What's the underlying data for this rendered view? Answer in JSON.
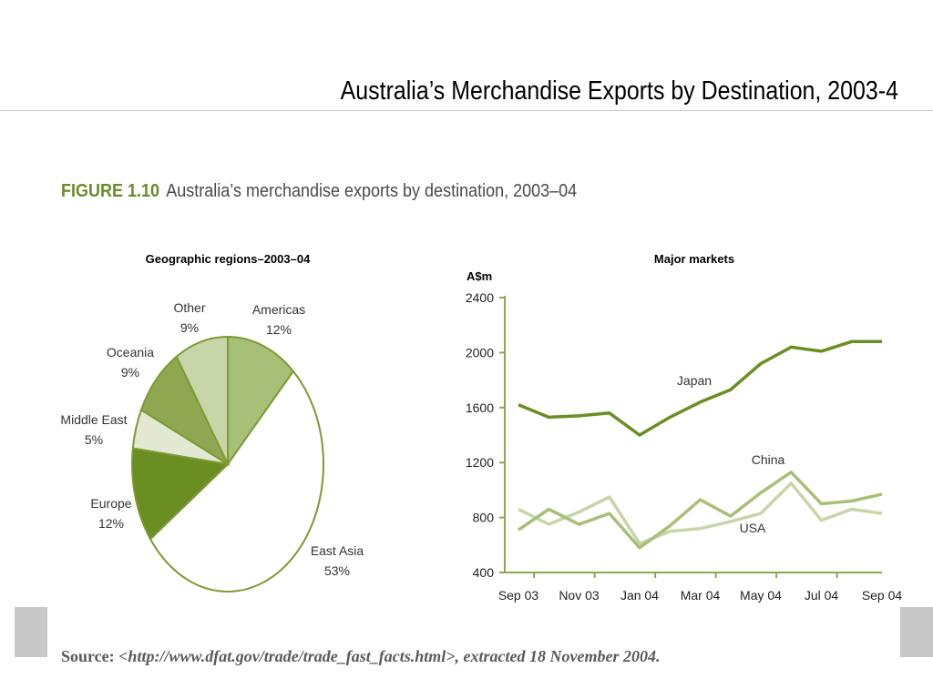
{
  "slide": {
    "title": "Australia’s Merchandise Exports by Destination, 2003-4"
  },
  "figure": {
    "number": "FIGURE 1.10",
    "caption": "Australia’s merchandise exports by destination, 2003–04"
  },
  "source": {
    "label": "Source:",
    "text": "<http://www.dfat.gov/trade/trade_fast_facts.html>, extracted 18 November 2004."
  },
  "colors": {
    "dark_green": "#6b8e23",
    "mid_green": "#8ea750",
    "light_green": "#c8d5a8",
    "pale_green": "#e2e8d2",
    "outline": "#7d9a32"
  },
  "chart_data": [
    {
      "type": "pie",
      "title": "Geographic regions–2003–04",
      "slices": [
        {
          "label": "Americas",
          "value_label": "12%",
          "value": 12,
          "color": "#a8bf78"
        },
        {
          "label": "East Asia",
          "value_label": "53%",
          "value": 53,
          "color": "#ffffff"
        },
        {
          "label": "Europe",
          "value_label": "12%",
          "value": 12,
          "color": "#6b8e23"
        },
        {
          "label": "Middle East",
          "value_label": "5%",
          "value": 5,
          "color": "#e2e8d2"
        },
        {
          "label": "Oceania",
          "value_label": "9%",
          "value": 9,
          "color": "#8ea750"
        },
        {
          "label": "Other",
          "value_label": "9%",
          "value": 9,
          "color": "#c8d5a8"
        }
      ]
    },
    {
      "type": "line",
      "title": "Major markets",
      "ylabel": "A$m",
      "ylim": [
        400,
        2400
      ],
      "yticks": [
        "400",
        "800",
        "1200",
        "1600",
        "2000",
        "2400"
      ],
      "xticklabels": [
        "Sep 03",
        "Nov 03",
        "Jan 04",
        "Mar 04",
        "May 04",
        "Jul 04",
        "Sep 04"
      ],
      "x": [
        "Sep 03",
        "Oct 03",
        "Nov 03",
        "Dec 03",
        "Jan 04",
        "Feb 04",
        "Mar 04",
        "Apr 04",
        "May 04",
        "Jun 04",
        "Jul 04",
        "Aug 04",
        "Sep 04"
      ],
      "series": [
        {
          "name": "Japan",
          "color": "#6b8e23",
          "values": [
            1620,
            1530,
            1540,
            1560,
            1400,
            1530,
            1640,
            1730,
            1920,
            2040,
            2010,
            2080,
            2080
          ]
        },
        {
          "name": "China",
          "color": "#a8bf78",
          "values": [
            710,
            860,
            750,
            830,
            580,
            740,
            930,
            810,
            980,
            1130,
            900,
            920,
            970
          ]
        },
        {
          "name": "USA",
          "color": "#c8d5a8",
          "values": [
            860,
            750,
            840,
            950,
            610,
            700,
            720,
            770,
            830,
            1050,
            780,
            860,
            830
          ]
        }
      ]
    }
  ]
}
